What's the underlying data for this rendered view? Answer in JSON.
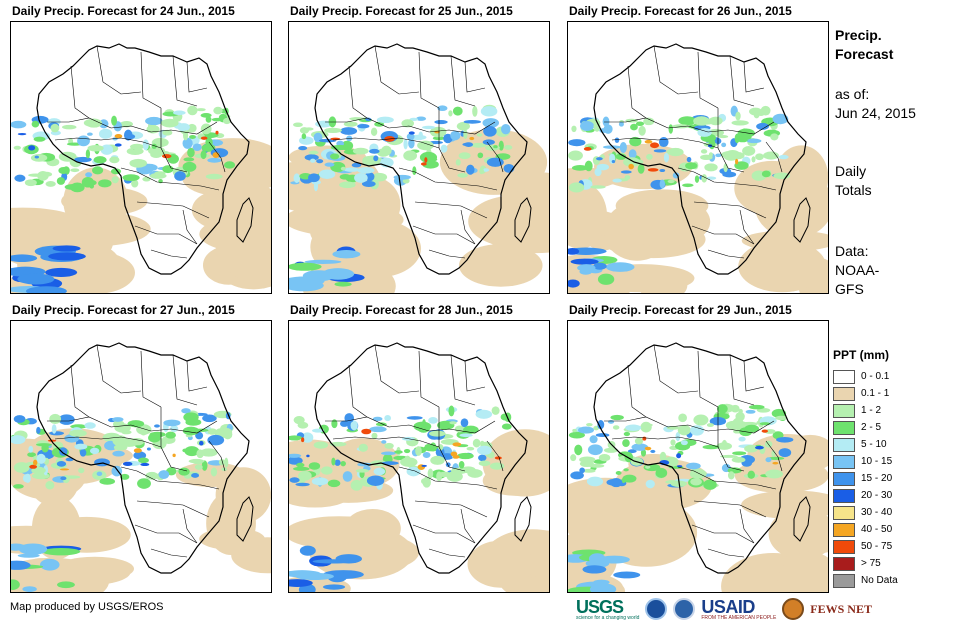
{
  "panels": [
    {
      "title": "Daily Precip. Forecast for 24 Jun., 2015",
      "seed": 1
    },
    {
      "title": "Daily Precip. Forecast for 25 Jun., 2015",
      "seed": 2
    },
    {
      "title": "Daily Precip. Forecast for 26 Jun., 2015",
      "seed": 3
    },
    {
      "title": "Daily Precip. Forecast for 27 Jun., 2015",
      "seed": 4
    },
    {
      "title": "Daily Precip. Forecast for 28 Jun., 2015",
      "seed": 5
    },
    {
      "title": "Daily Precip. Forecast for 29 Jun., 2015",
      "seed": 6
    }
  ],
  "side": {
    "title_line1": "Precip.",
    "title_line2": "Forecast",
    "asof_line1": "as of:",
    "asof_line2": "Jun 24, 2015",
    "totals_line1": "Daily",
    "totals_line2": "Totals",
    "data_line1": "Data:",
    "data_line2": "NOAA-",
    "data_line3": "GFS"
  },
  "legend": {
    "title": "PPT (mm)",
    "items": [
      {
        "label": "0 - 0.1",
        "color": "#ffffff"
      },
      {
        "label": "0.1 - 1",
        "color": "#ead5b0"
      },
      {
        "label": "1 - 2",
        "color": "#b5f0b0"
      },
      {
        "label": "2 - 5",
        "color": "#6ee26e"
      },
      {
        "label": "5 - 10",
        "color": "#b4ecf4"
      },
      {
        "label": "10 - 15",
        "color": "#78c4f4"
      },
      {
        "label": "15 - 20",
        "color": "#3f93ec"
      },
      {
        "label": "20 - 30",
        "color": "#1a5ee6"
      },
      {
        "label": "30 - 40",
        "color": "#f6e48a"
      },
      {
        "label": "40 - 50",
        "color": "#f5a623"
      },
      {
        "label": "50 - 75",
        "color": "#f04a0a"
      },
      {
        "label": "> 75",
        "color": "#a81c1c"
      },
      {
        "label": "No Data",
        "color": "#9a9a9a"
      }
    ]
  },
  "credit": "Map produced by USGS/EROS",
  "logos": {
    "usgs": "USGS",
    "usgs_tagline": "science for a changing world",
    "usaid": "USAID",
    "usaid_tagline": "FROM THE AMERICAN PEOPLE",
    "fews": "FEWS NET"
  }
}
